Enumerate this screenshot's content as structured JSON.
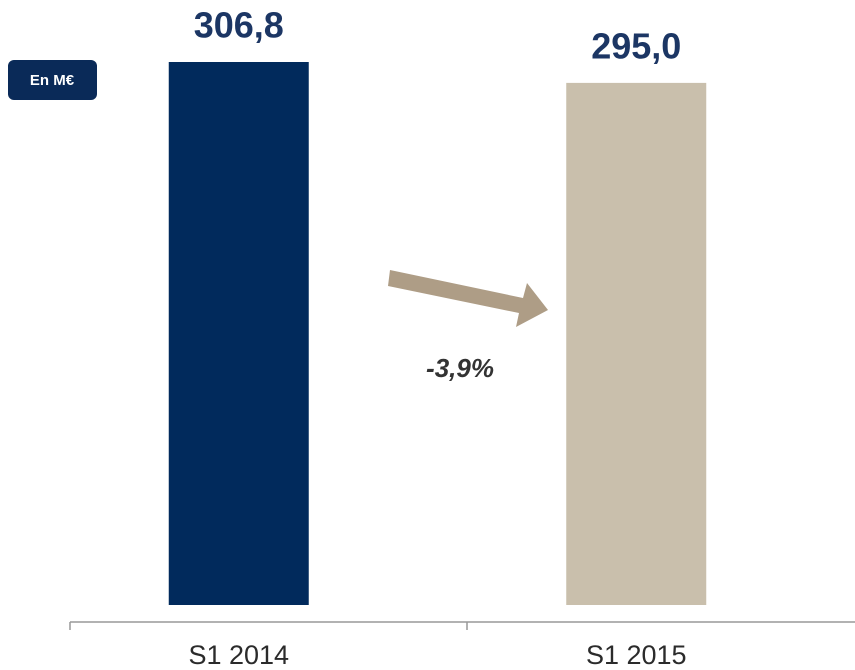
{
  "chart_data": {
    "type": "bar",
    "unit_label": "En M€",
    "categories": [
      "S1 2014",
      "S1 2015"
    ],
    "values": [
      306.8,
      295.0
    ],
    "value_labels": [
      "306,8",
      "295,0"
    ],
    "colors": [
      "#012a5c",
      "#c9bfac"
    ],
    "annotation": "-3,9%"
  }
}
